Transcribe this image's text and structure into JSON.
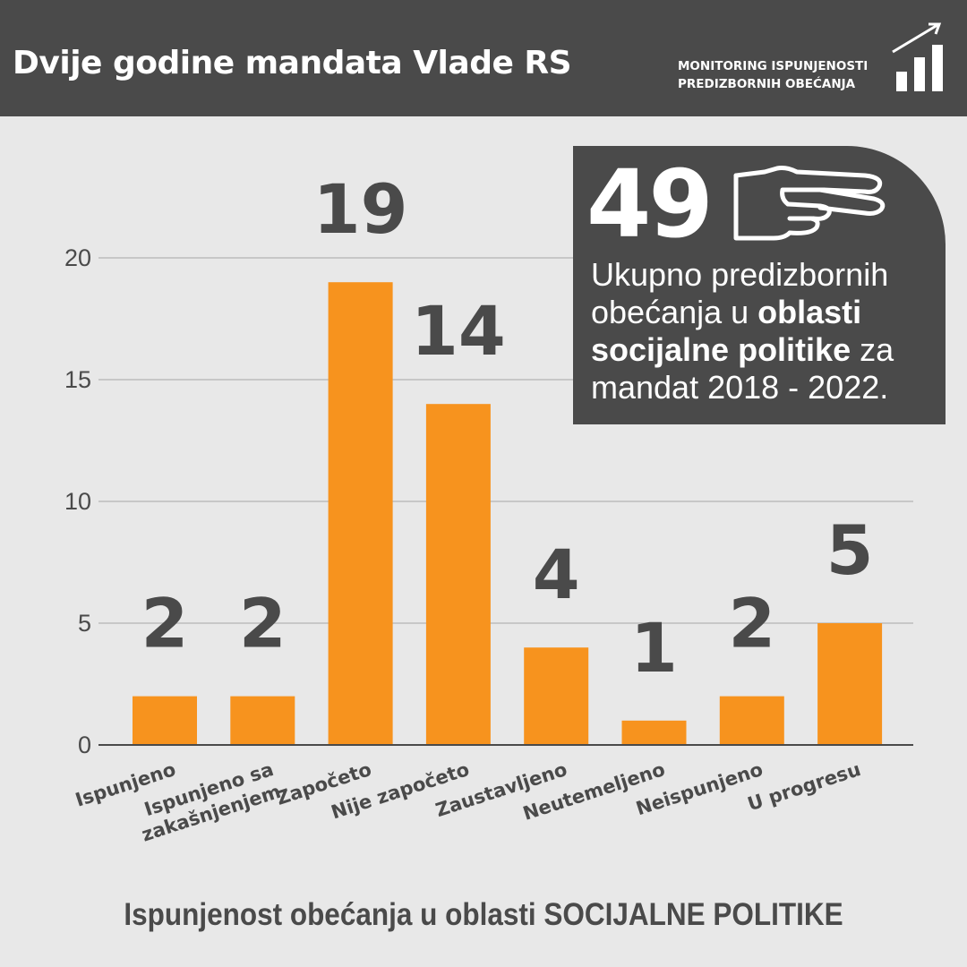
{
  "header": {
    "title": "Dvije godine mandata Vlade RS",
    "badge_line1": "MONITORING ISPUNJENOSTI",
    "badge_line2": "PREDIZBORNIH OBEĆANJA",
    "badge_icon": "rising-bar-chart-icon"
  },
  "infobox": {
    "total": "49",
    "icon": "pointing-hand-icon",
    "text_1": "Ukupno predizbornih obećanja u ",
    "text_bold": "oblasti socijalne politike",
    "text_2": " za mandat 2018 - 2022."
  },
  "footer": {
    "text": "Ispunjenost obećanja u oblasti SOCIJALNE POLITIKE"
  },
  "colors": {
    "bar": "#f7931e",
    "dark": "#4a4a4a",
    "background": "#e8e8e8"
  },
  "chart_data": {
    "type": "bar",
    "categories": [
      [
        "Ispunjeno"
      ],
      [
        "Ispunjeno sa",
        "zakašnjenjem"
      ],
      [
        "Započeto"
      ],
      [
        "Nije započeto"
      ],
      [
        "Zaustavljeno"
      ],
      [
        "Neutemeljeno"
      ],
      [
        "Neispunjeno"
      ],
      [
        "U progresu"
      ]
    ],
    "values": [
      2,
      2,
      19,
      14,
      4,
      1,
      2,
      5
    ],
    "ylim": [
      0,
      20
    ],
    "yticks": [
      0,
      5,
      10,
      15,
      20
    ],
    "grid": true,
    "xlabel": "",
    "ylabel": ""
  }
}
